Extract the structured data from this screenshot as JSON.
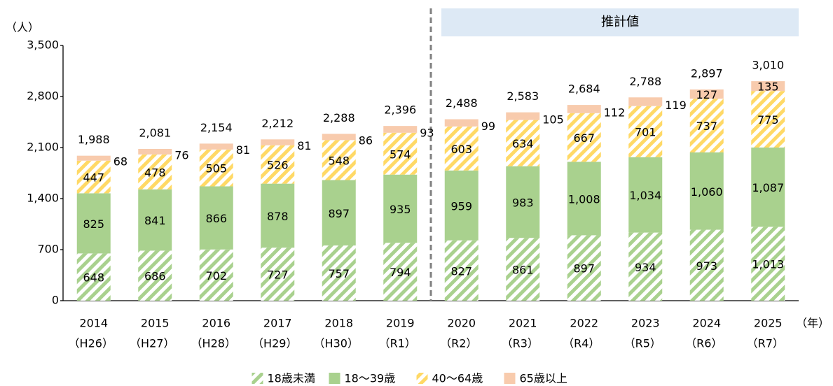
{
  "chart_data": {
    "type": "stacked_bar",
    "y_label": "（人）",
    "x_unit": "（年）",
    "annotation": "推計値",
    "categories": [
      "2014",
      "2015",
      "2016",
      "2017",
      "2018",
      "2019",
      "2020",
      "2021",
      "2022",
      "2023",
      "2024",
      "2025"
    ],
    "category_sublabels": [
      "（H26）",
      "（H27）",
      "（H28）",
      "（H29）",
      "（H30）",
      "（R1）",
      "（R2）",
      "（R3）",
      "（R4）",
      "（R5）",
      "（R6）",
      "（R7）"
    ],
    "projection_start": "2020",
    "total_labels": [
      "1,988",
      "2,081",
      "2,154",
      "2,212",
      "2,288",
      "2,396",
      "2,488",
      "2,583",
      "2,684",
      "2,788",
      "2,897",
      "3,010"
    ],
    "series": [
      {
        "name": "18歳未満",
        "color": "#a9d18e",
        "pattern": "stripes",
        "values": [
          648,
          686,
          702,
          727,
          757,
          794,
          827,
          861,
          897,
          934,
          973,
          1013
        ],
        "value_labels": [
          "648",
          "686",
          "702",
          "727",
          "757",
          "794",
          "827",
          "861",
          "897",
          "934",
          "973",
          "1,013"
        ]
      },
      {
        "name": "18～39歳",
        "color": "#a9d18e",
        "pattern": "solid",
        "values": [
          825,
          841,
          866,
          878,
          897,
          935,
          959,
          983,
          1008,
          1034,
          1060,
          1087
        ],
        "value_labels": [
          "825",
          "841",
          "866",
          "878",
          "897",
          "935",
          "959",
          "983",
          "1,008",
          "1,034",
          "1,060",
          "1,087"
        ]
      },
      {
        "name": "40～64歳",
        "color": "#ffd966",
        "pattern": "stripes",
        "values": [
          447,
          478,
          505,
          526,
          548,
          574,
          603,
          634,
          667,
          701,
          737,
          775
        ]
      },
      {
        "name": "65歳以上",
        "color": "#f8cbad",
        "pattern": "solid",
        "values": [
          68,
          76,
          81,
          81,
          86,
          93,
          99,
          105,
          112,
          119,
          127,
          135
        ]
      }
    ],
    "ylim": [
      0,
      3500
    ],
    "yticks": [
      0,
      700,
      {
        "value": 1400,
        "label": "1,400"
      },
      {
        "value": 2100,
        "label": "2,100"
      },
      {
        "value": 2800,
        "label": "2,800"
      },
      {
        "value": 3500,
        "label": "3,500"
      }
    ]
  }
}
